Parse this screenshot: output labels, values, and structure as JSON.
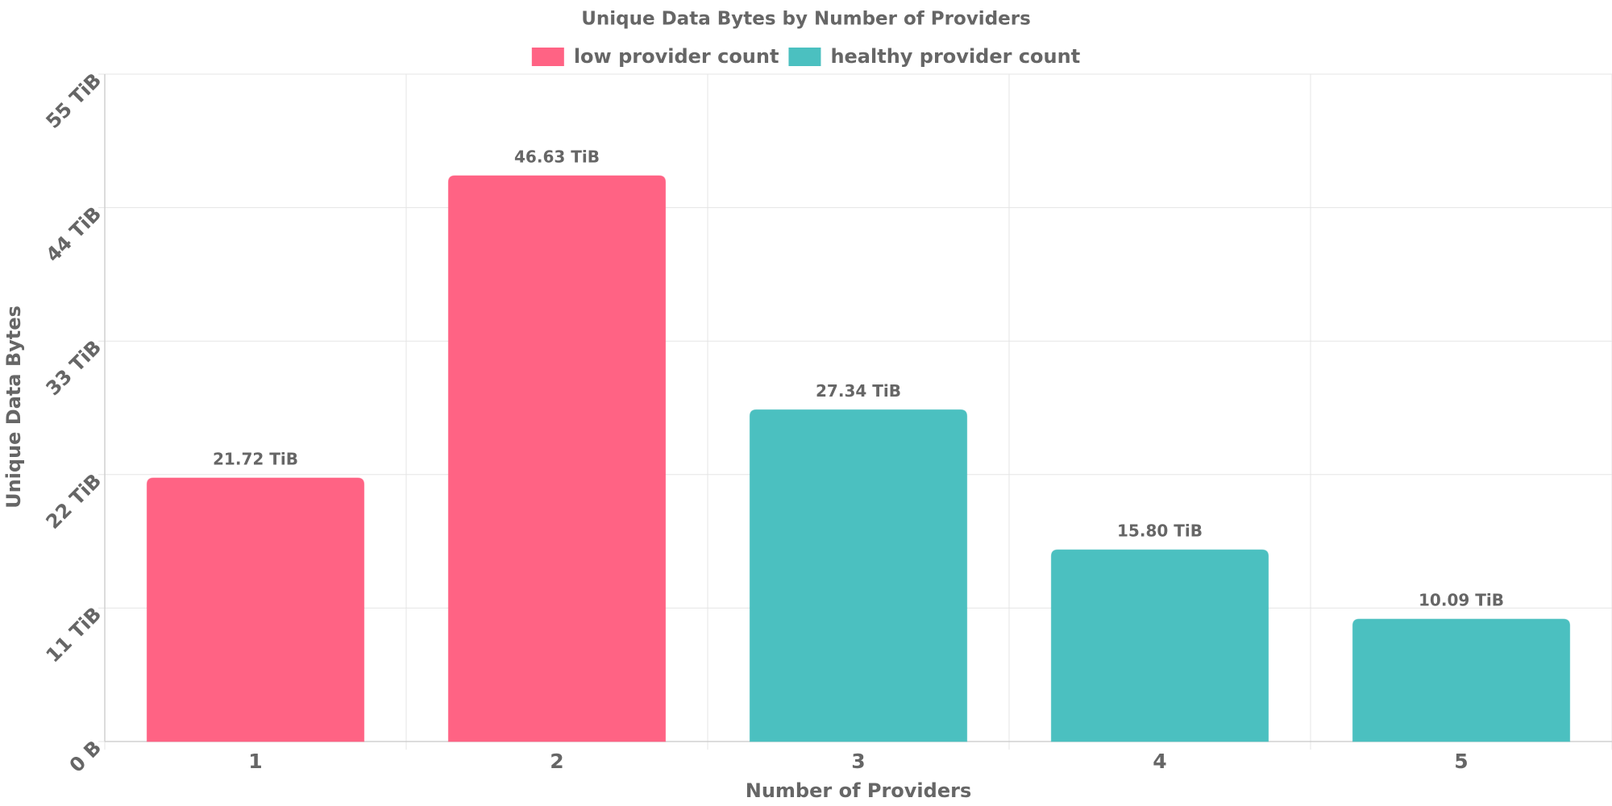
{
  "chart_data": {
    "type": "bar",
    "title": "Unique Data Bytes by Number of Providers",
    "x_label": "Number of Providers",
    "y_label": "Unique Data Bytes",
    "categories": [
      "1",
      "2",
      "3",
      "4",
      "5"
    ],
    "series": [
      {
        "name": "low provider count",
        "color": "#ff6384",
        "values": [
          21.72,
          46.63,
          null,
          null,
          null
        ],
        "value_labels": [
          "21.72 TiB",
          "46.63 TiB",
          null,
          null,
          null
        ]
      },
      {
        "name": "healthy provider count",
        "color": "#4bc0c0",
        "values": [
          null,
          null,
          27.34,
          15.8,
          10.09
        ],
        "value_labels": [
          null,
          null,
          "27.34 TiB",
          "15.80 TiB",
          "10.09 TiB"
        ]
      }
    ],
    "ylim": [
      0,
      55
    ],
    "yticks": [
      {
        "value": 0,
        "label": "0 B"
      },
      {
        "value": 11,
        "label": "11 TiB"
      },
      {
        "value": 22,
        "label": "22 TiB"
      },
      {
        "value": 33,
        "label": "33 TiB"
      },
      {
        "value": 44,
        "label": "44 TiB"
      },
      {
        "value": 55,
        "label": "55 TiB"
      }
    ],
    "grid": true,
    "legend": "top"
  }
}
